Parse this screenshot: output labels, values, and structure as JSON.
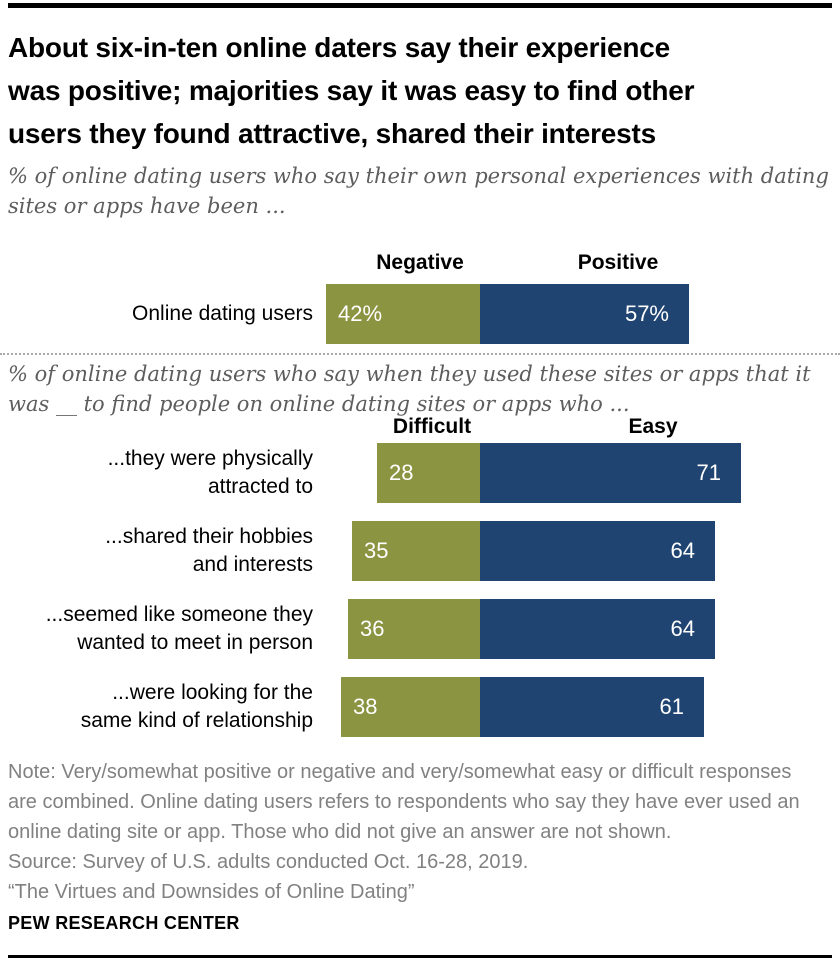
{
  "header": {
    "title": "About six-in-ten online daters say their experience\nwas positive; majorities say it was easy to find other\nusers they found attractive, shared their interests"
  },
  "colors": {
    "negative_difficult": "#8A9441",
    "positive_easy": "#1F4472",
    "value_text": "#FFFFFF",
    "subtitle_gray": "#5d5d5d",
    "note_gray": "#818181"
  },
  "chart_data": [
    {
      "type": "bar",
      "subtype": "horizontal-stacked",
      "subtitle": "% of online dating users who say their own personal experiences with dating\nsites or apps have been ...",
      "categories": [
        "Online dating users"
      ],
      "series": [
        {
          "name": "Negative",
          "color": "#8A9441",
          "values": [
            42
          ]
        },
        {
          "name": "Positive",
          "color": "#1F4472",
          "values": [
            57
          ]
        }
      ],
      "value_suffix": "%",
      "xlim": [
        0,
        100
      ],
      "legend_position": "above-bars",
      "grid": false
    },
    {
      "type": "bar",
      "subtype": "horizontal-stacked",
      "subtitle": "% of online dating users who say when they used these sites or apps that it\nwas __ to find people on online dating sites or apps who ...",
      "categories": [
        "...they were physically\nattracted to",
        "...shared their hobbies\nand interests",
        "...seemed like someone they\nwanted to meet in person",
        "...were looking for the\nsame kind of relationship"
      ],
      "series": [
        {
          "name": "Difficult",
          "color": "#8A9441",
          "values": [
            28,
            35,
            36,
            38
          ]
        },
        {
          "name": "Easy",
          "color": "#1F4472",
          "values": [
            71,
            64,
            64,
            61
          ]
        }
      ],
      "value_suffix": "",
      "xlim": [
        0,
        100
      ],
      "legend_position": "above-bars",
      "grid": false
    }
  ],
  "footer": {
    "note": "Note: Very/somewhat positive or negative and very/somewhat easy or difficult responses\nare combined. Online dating users refers to respondents who say they have ever used an\nonline dating site or app. Those who did not give an answer are not shown.",
    "source": "Source: Survey of U.S. adults conducted Oct. 16-28, 2019.",
    "report": "“The Virtues and Downsides of Online Dating”",
    "brand": "PEW RESEARCH CENTER"
  }
}
